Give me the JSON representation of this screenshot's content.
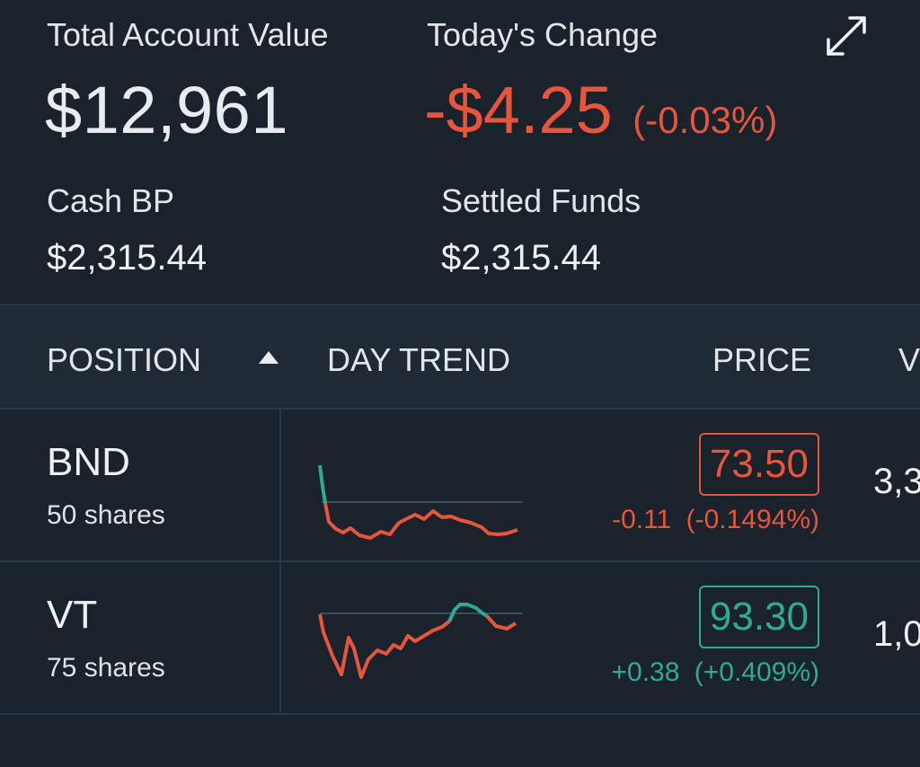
{
  "summary": {
    "total_label": "Total Account Value",
    "total_value": "$12,961",
    "change_label": "Today's Change",
    "change_value": "-$4.25",
    "change_pct": "(-0.03%)",
    "cash_label": "Cash BP",
    "cash_value": "$2,315.44",
    "settled_label": "Settled Funds",
    "settled_value": "$2,315.44"
  },
  "icons": {
    "expand": "expand-arrows-icon",
    "sort": "sort-ascending-icon"
  },
  "colors": {
    "background": "#1a222c",
    "negative": "#e7553b",
    "positive": "#2eab94"
  },
  "table": {
    "headers": {
      "position": "POSITION",
      "day_trend": "DAY TREND",
      "price": "PRICE",
      "value_partial": "V"
    },
    "rows": [
      {
        "symbol": "BND",
        "shares": "50 shares",
        "price": "73.50",
        "change": "-0.11",
        "change_pct": "(-0.1494%)",
        "value_partial": "3,3",
        "direction": "negative"
      },
      {
        "symbol": "VT",
        "shares": "75 shares",
        "price": "93.30",
        "change": "+0.38",
        "change_pct": "(+0.409%)",
        "value_partial": "1,0",
        "direction": "positive"
      }
    ]
  }
}
